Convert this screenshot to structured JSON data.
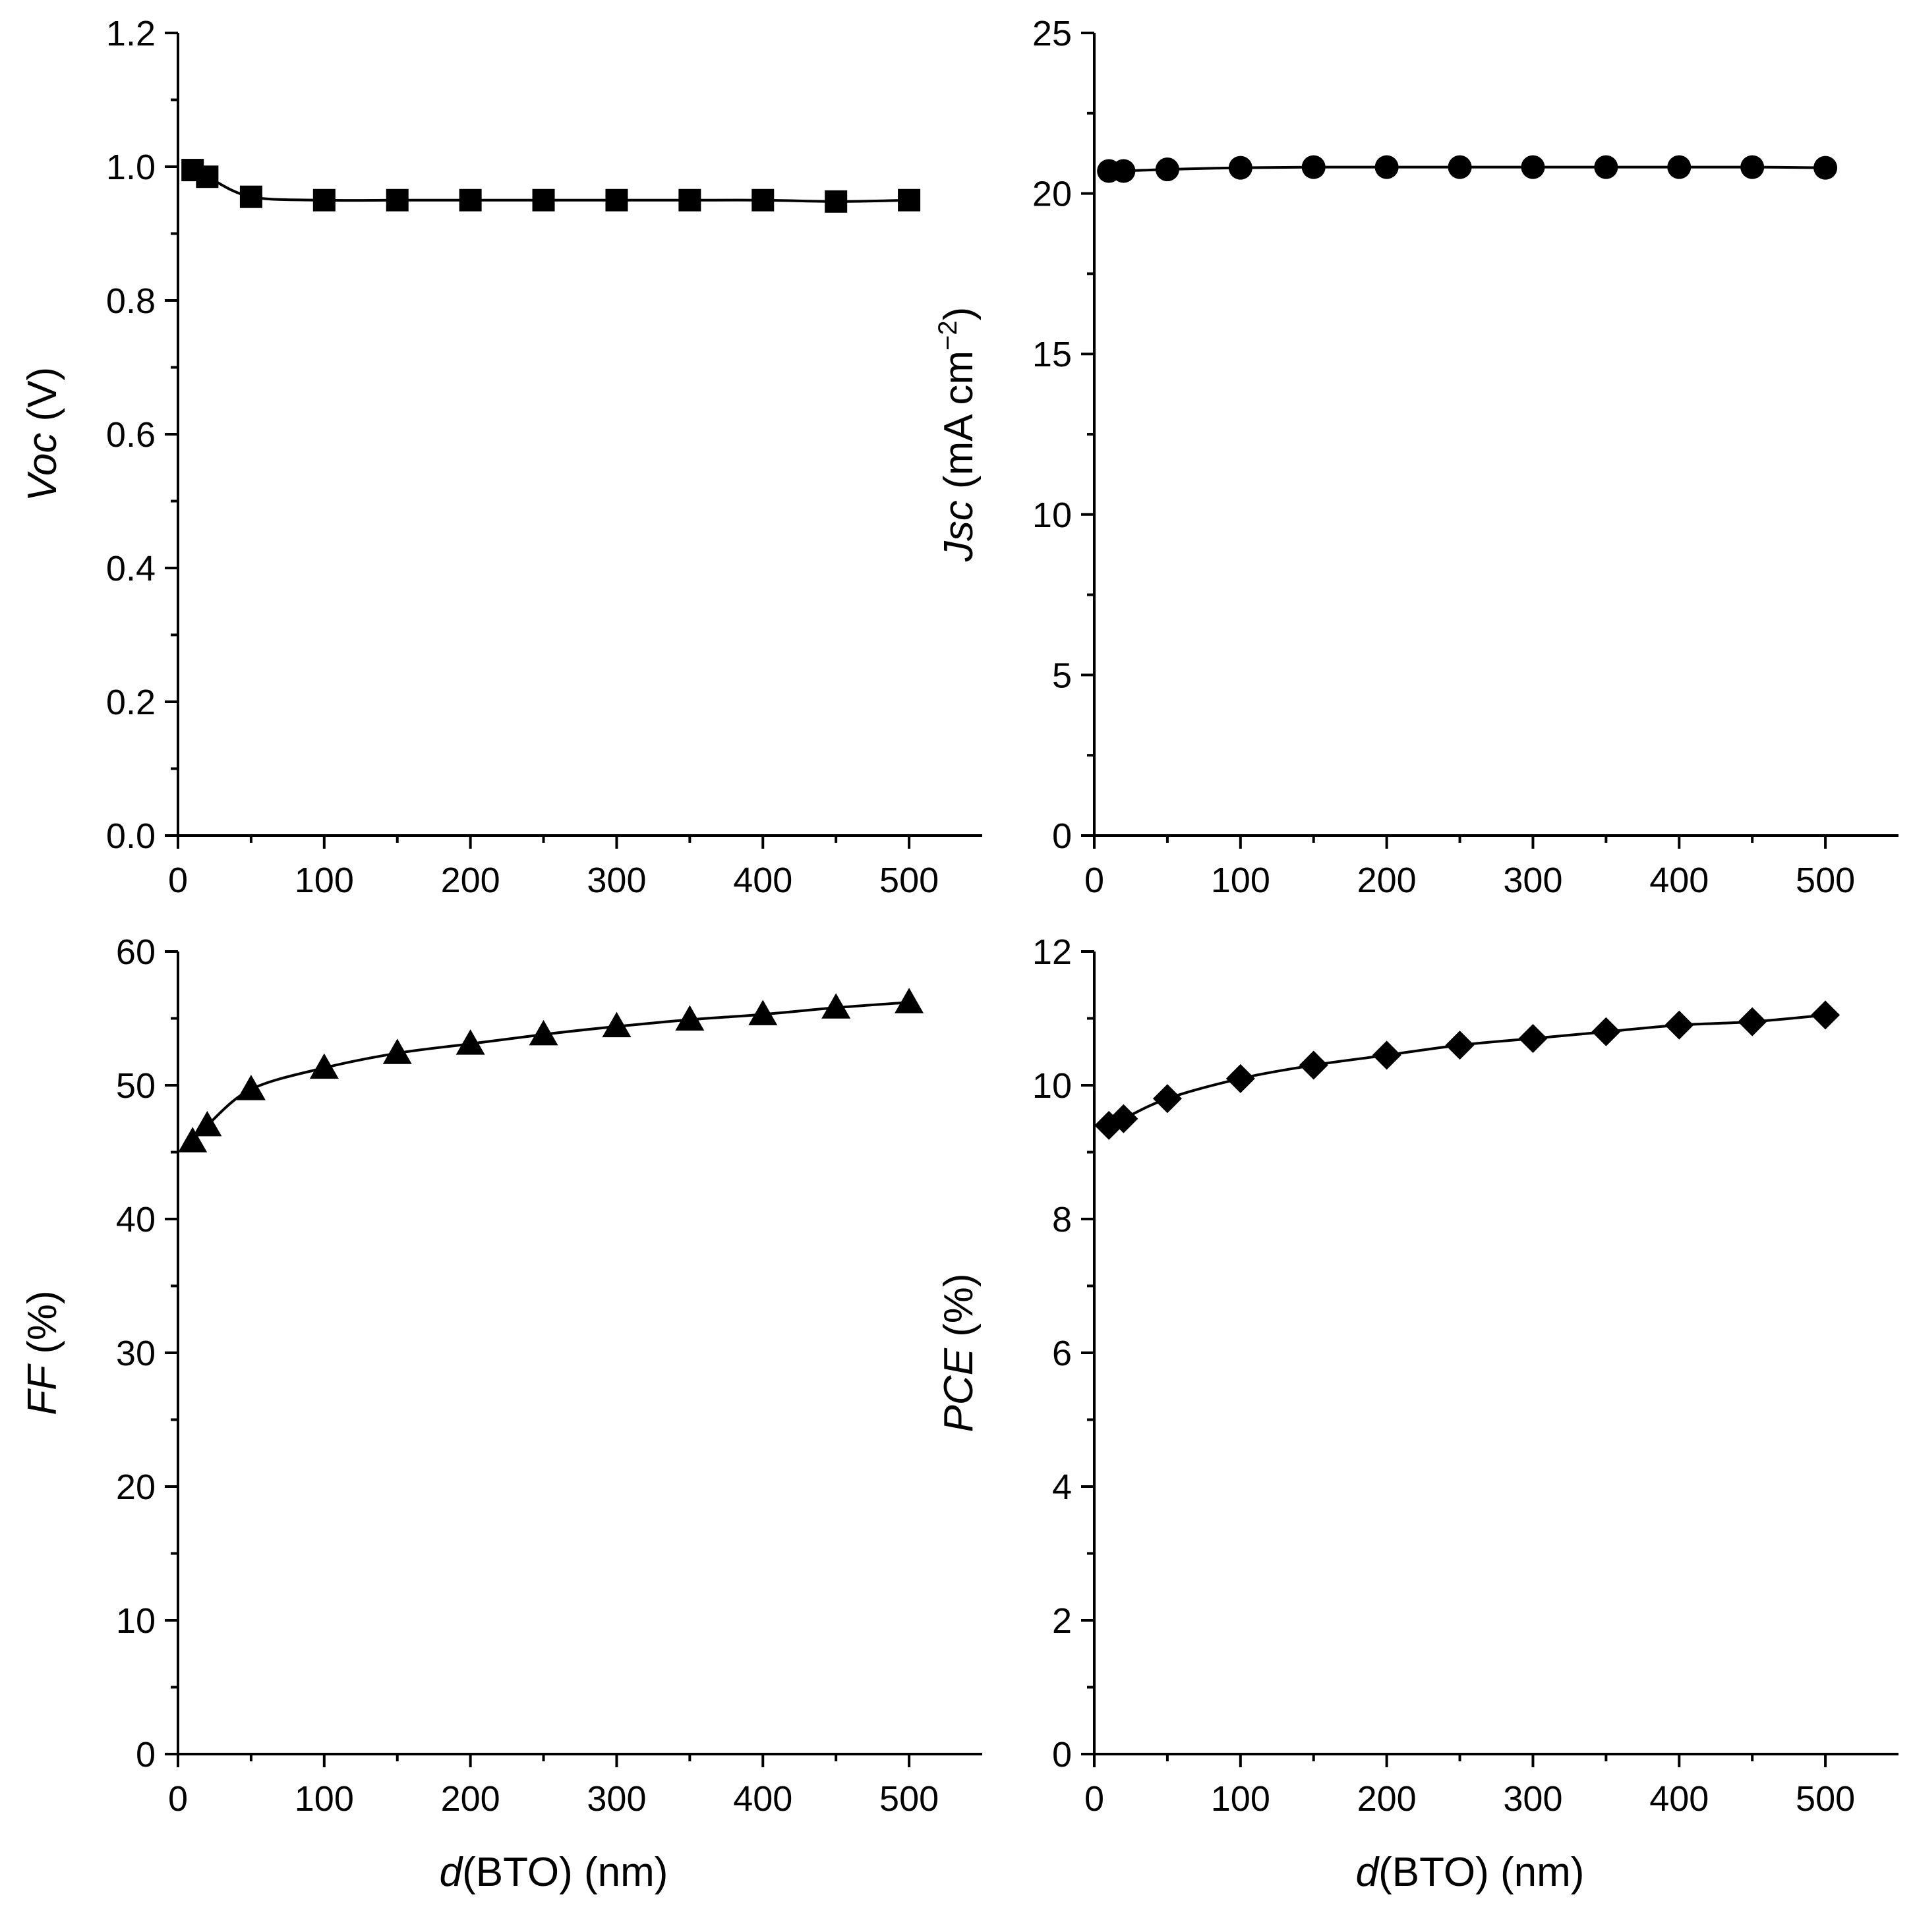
{
  "chart_data": [
    {
      "id": "voc",
      "type": "line",
      "marker": "square",
      "x": [
        10,
        20,
        50,
        100,
        150,
        200,
        250,
        300,
        350,
        400,
        450,
        500
      ],
      "values": [
        0.995,
        0.985,
        0.955,
        0.95,
        0.95,
        0.95,
        0.95,
        0.95,
        0.95,
        0.95,
        0.948,
        0.95
      ],
      "xlim": [
        0,
        550
      ],
      "ylim": [
        0,
        1.2
      ],
      "xticks": [
        0,
        100,
        200,
        300,
        400,
        500
      ],
      "xtick_labels": [
        "0",
        "100",
        "200",
        "300",
        "400",
        "500"
      ],
      "yticks": [
        0,
        0.2,
        0.4,
        0.6,
        0.8,
        1.0,
        1.2
      ],
      "ytick_labels": [
        "0.0",
        "0.2",
        "0.4",
        "0.6",
        "0.8",
        "1.0",
        "1.2"
      ],
      "ylabel_italic": "Voc",
      "ylabel_rest": " (V)",
      "xlabel_italic": "",
      "xlabel_rest": ""
    },
    {
      "id": "jsc",
      "type": "line",
      "marker": "circle",
      "x": [
        10,
        20,
        50,
        100,
        150,
        200,
        250,
        300,
        350,
        400,
        450,
        500
      ],
      "values": [
        20.7,
        20.7,
        20.75,
        20.8,
        20.82,
        20.82,
        20.82,
        20.82,
        20.82,
        20.82,
        20.82,
        20.8
      ],
      "xlim": [
        0,
        550
      ],
      "ylim": [
        0,
        25
      ],
      "xticks": [
        0,
        100,
        200,
        300,
        400,
        500
      ],
      "xtick_labels": [
        "0",
        "100",
        "200",
        "300",
        "400",
        "500"
      ],
      "yticks": [
        0,
        5,
        10,
        15,
        20,
        25
      ],
      "ytick_labels": [
        "0",
        "5",
        "10",
        "15",
        "20",
        "25"
      ],
      "ylabel_italic": "Jsc",
      "ylabel_rest": " (mA cm",
      "ylabel_sup": "−2",
      "ylabel_close": ")",
      "xlabel_italic": "",
      "xlabel_rest": ""
    },
    {
      "id": "ff",
      "type": "line",
      "marker": "triangle",
      "x": [
        10,
        20,
        50,
        100,
        150,
        200,
        250,
        300,
        350,
        400,
        450,
        500
      ],
      "values": [
        45.8,
        47.0,
        49.7,
        51.3,
        52.4,
        53.1,
        53.8,
        54.4,
        54.9,
        55.3,
        55.8,
        56.2
      ],
      "xlim": [
        0,
        550
      ],
      "ylim": [
        0,
        60
      ],
      "xticks": [
        0,
        100,
        200,
        300,
        400,
        500
      ],
      "xtick_labels": [
        "0",
        "100",
        "200",
        "300",
        "400",
        "500"
      ],
      "yticks": [
        0,
        10,
        20,
        30,
        40,
        50,
        60
      ],
      "ytick_labels": [
        "0",
        "10",
        "20",
        "30",
        "40",
        "50",
        "60"
      ],
      "ylabel_italic": "FF",
      "ylabel_rest": " (%)",
      "xlabel_italic": "d",
      "xlabel_rest": "(BTO) (nm)"
    },
    {
      "id": "pce",
      "type": "line",
      "marker": "diamond",
      "x": [
        10,
        20,
        50,
        100,
        150,
        200,
        250,
        300,
        350,
        400,
        450,
        500
      ],
      "values": [
        9.4,
        9.5,
        9.8,
        10.1,
        10.3,
        10.45,
        10.6,
        10.7,
        10.8,
        10.9,
        10.95,
        11.05
      ],
      "xlim": [
        0,
        550
      ],
      "ylim": [
        0,
        12
      ],
      "xticks": [
        0,
        100,
        200,
        300,
        400,
        500
      ],
      "xtick_labels": [
        "0",
        "100",
        "200",
        "300",
        "400",
        "500"
      ],
      "yticks": [
        0,
        2,
        4,
        6,
        8,
        10,
        12
      ],
      "ytick_labels": [
        "0",
        "2",
        "4",
        "6",
        "8",
        "10",
        "12"
      ],
      "ylabel_italic": "PCE",
      "ylabel_rest": " (%)",
      "xlabel_italic": "d",
      "xlabel_rest": "(BTO) (nm)"
    }
  ]
}
